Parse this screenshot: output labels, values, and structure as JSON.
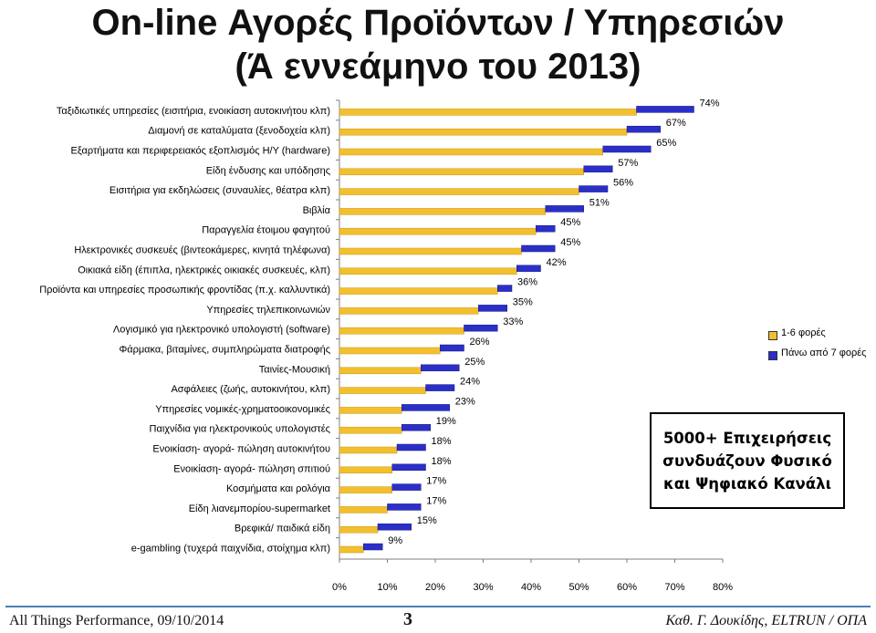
{
  "slide": {
    "title_line1": "On-line Αγορές Προϊόντων / Υπηρεσιών",
    "title_line2": "(Ά εννεάμηνο του 2013)",
    "callout": "5000+ Επιχειρήσεις\nσυνδυάζουν Φυσικό\nκαι Ψηφιακό Κανάλι",
    "footer_left": "All Things Performance, 09/10/2014",
    "page_number": "3",
    "footer_right": "Καθ. Γ. Δουκίδης, ELTRUN / ΟΠΑ"
  },
  "colors": {
    "series1": "#f2c02e",
    "series2": "#2b2fc7",
    "background": "#ffffff"
  },
  "chart_data": {
    "type": "bar",
    "orientation": "horizontal",
    "stacked": true,
    "categories": [
      "Ταξιδιωτικές υπηρεσίες (εισιτήρια, ενοικίαση αυτοκινήτου κλπ)",
      "Διαμονή σε καταλύματα (ξενοδοχεία κλπ)",
      "Εξαρτήματα και περιφερειακός εξοπλισμός Η/Υ (hardware)",
      "Είδη ένδυσης και υπόδησης",
      "Εισιτήρια για εκδηλώσεις (συναυλίες, θέατρα κλπ)",
      "Βιβλία",
      "Παραγγελία έτοιμου φαγητού",
      "Ηλεκτρονικές συσκευές (βιντεοκάμερες, κινητά τηλέφωνα)",
      "Οικιακά είδη (έπιπλα, ηλεκτρικές οικιακές συσκευές, κλπ)",
      "Προϊόντα και υπηρεσίες προσωπικής φροντίδας (π.χ. καλλυντικά)",
      "Υπηρεσίες τηλεπικοινωνιών",
      "Λογισμικό για ηλεκτρονικό υπολογιστή (software)",
      "Φάρμακα, βιταμίνες, συμπληρώματα διατροφής",
      "Ταινίες-Μουσική",
      "Ασφάλειες (ζωής, αυτοκινήτου, κλπ)",
      "Υπηρεσίες νομικές-χρηματοοικονομικές",
      "Παιχνίδια για ηλεκτρονικούς υπολογιστές",
      "Ενοικίαση- αγορά- πώληση αυτοκινήτου",
      "Ενοικίαση- αγορά- πώληση σπιτιού",
      "Κοσμήματα και ρολόγια",
      "Είδη λιανεμπορίου-supermarket",
      "Βρεφικά/ παιδικά είδη",
      "e-gambling (τυχερά παιχνίδια, στοίχημα κλπ)"
    ],
    "series": [
      {
        "name": "1-6 φορές",
        "values": [
          62,
          60,
          55,
          51,
          50,
          43,
          41,
          38,
          37,
          33,
          29,
          26,
          21,
          17,
          18,
          13,
          13,
          12,
          11,
          11,
          10,
          8,
          5
        ]
      },
      {
        "name": "Πάνω από 7 φορές",
        "values": [
          12,
          7,
          10,
          6,
          6,
          8,
          4,
          7,
          5,
          3,
          6,
          7,
          5,
          8,
          6,
          10,
          6,
          6,
          7,
          6,
          7,
          7,
          4
        ]
      }
    ],
    "totals": [
      "74%",
      "67%",
      "65%",
      "57%",
      "56%",
      "51%",
      "45%",
      "45%",
      "42%",
      "36%",
      "35%",
      "33%",
      "26%",
      "25%",
      "24%",
      "23%",
      "19%",
      "18%",
      "18%",
      "17%",
      "17%",
      "15%",
      "9%"
    ],
    "x_ticks": [
      "0%",
      "10%",
      "20%",
      "30%",
      "40%",
      "50%",
      "60%",
      "70%",
      "80%"
    ],
    "xlim": [
      0,
      80
    ],
    "legend_position": "right",
    "grid": false
  }
}
